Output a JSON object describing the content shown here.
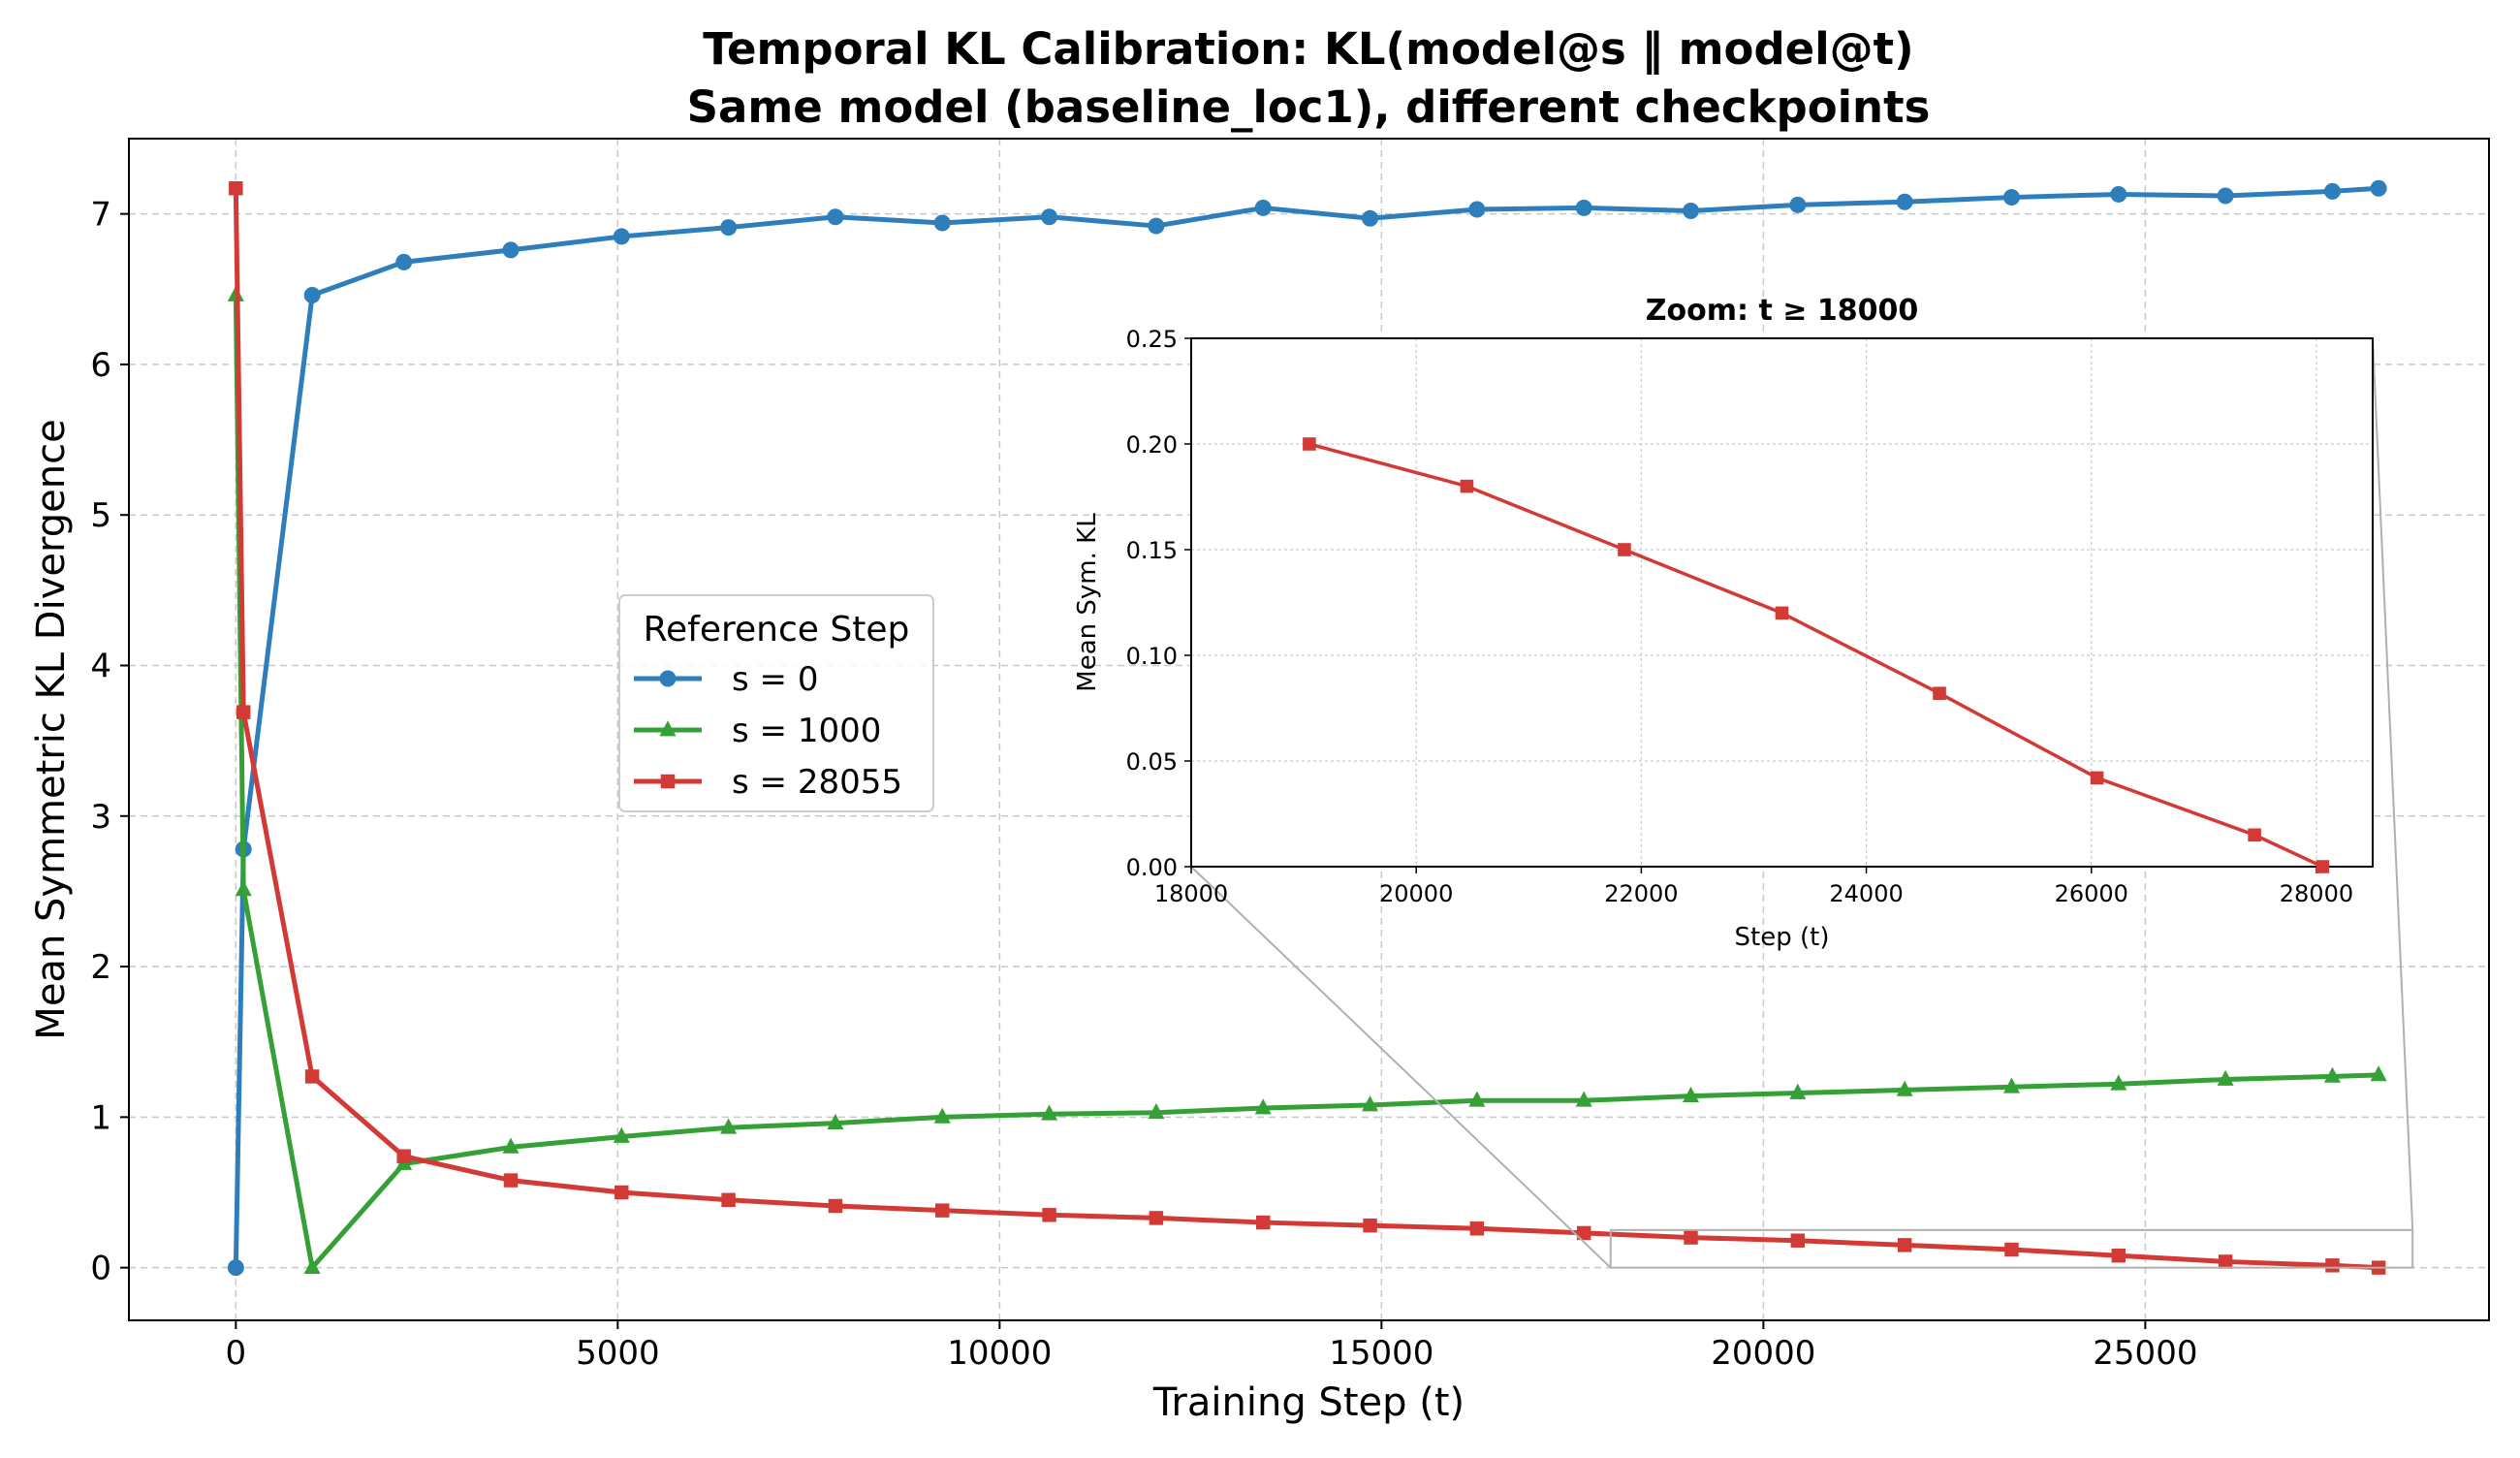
{
  "title_line1": "Temporal KL Calibration: KL(model@s ‖ model@t)",
  "title_line2": "Same model (baseline_loc1), different checkpoints",
  "chart_data": [
    {
      "type": "line",
      "xlabel": "Training Step (t)",
      "ylabel": "Mean Symmetric KL Divergence",
      "xlim": [
        -1400,
        29500
      ],
      "ylim": [
        -0.35,
        7.5
      ],
      "x_ticks": [
        0,
        5000,
        10000,
        15000,
        20000,
        25000
      ],
      "y_ticks": [
        0,
        1,
        2,
        3,
        4,
        5,
        6,
        7
      ],
      "grid": true,
      "legend": {
        "title": "Reference Step",
        "placement": "center-left"
      },
      "series": [
        {
          "name": "s = 0",
          "color": "#2e7ebc",
          "marker": "circle",
          "x": [
            0,
            100,
            1000,
            2200,
            3600,
            5050,
            6450,
            7850,
            9250,
            10650,
            12050,
            13450,
            14850,
            16250,
            17650,
            19050,
            20450,
            21850,
            23250,
            24650,
            26050,
            27450,
            28055
          ],
          "y": [
            0,
            2.78,
            6.46,
            6.68,
            6.76,
            6.85,
            6.91,
            6.98,
            6.94,
            6.98,
            6.92,
            7.04,
            6.97,
            7.03,
            7.04,
            7.02,
            7.06,
            7.08,
            7.11,
            7.13,
            7.12,
            7.15,
            7.17
          ]
        },
        {
          "name": "s = 1000",
          "color": "#35a035",
          "marker": "triangle",
          "x": [
            0,
            100,
            1000,
            2200,
            3600,
            5050,
            6450,
            7850,
            9250,
            10650,
            12050,
            13450,
            14850,
            16250,
            17650,
            19050,
            20450,
            21850,
            23250,
            24650,
            26050,
            27450,
            28055
          ],
          "y": [
            6.46,
            2.51,
            0,
            0.69,
            0.8,
            0.87,
            0.93,
            0.96,
            1.0,
            1.02,
            1.03,
            1.06,
            1.08,
            1.11,
            1.11,
            1.14,
            1.16,
            1.18,
            1.2,
            1.22,
            1.25,
            1.27,
            1.28
          ]
        },
        {
          "name": "s = 28055",
          "color": "#d33a35",
          "marker": "square",
          "x": [
            0,
            100,
            1000,
            2200,
            3600,
            5050,
            6450,
            7850,
            9250,
            10650,
            12050,
            13450,
            14850,
            16250,
            17650,
            19050,
            20450,
            21850,
            23250,
            24650,
            26050,
            27450,
            28055
          ],
          "y": [
            7.17,
            3.69,
            1.27,
            0.74,
            0.58,
            0.5,
            0.45,
            0.41,
            0.38,
            0.35,
            0.33,
            0.3,
            0.28,
            0.26,
            0.23,
            0.2,
            0.18,
            0.15,
            0.12,
            0.08,
            0.04,
            0.015,
            0
          ]
        }
      ]
    },
    {
      "type": "line",
      "title": "Zoom: t ≥ 18000",
      "xlabel": "Step (t)",
      "ylabel": "Mean Sym. KL",
      "xlim": [
        18000,
        28500
      ],
      "ylim": [
        0.0,
        0.25
      ],
      "x_ticks": [
        "18000",
        "20000",
        "22000",
        "24000",
        "26000",
        "28000"
      ],
      "y_ticks": [
        "0.00",
        "0.05",
        "0.10",
        "0.15",
        "0.20",
        "0.25"
      ],
      "grid": true,
      "series": [
        {
          "color": "#d33a35",
          "marker": "square",
          "x": [
            19050,
            20450,
            21850,
            23250,
            24650,
            26050,
            27450,
            28055
          ],
          "y": [
            0.2,
            0.18,
            0.15,
            0.12,
            0.082,
            0.042,
            0.015,
            0
          ]
        }
      ]
    }
  ]
}
